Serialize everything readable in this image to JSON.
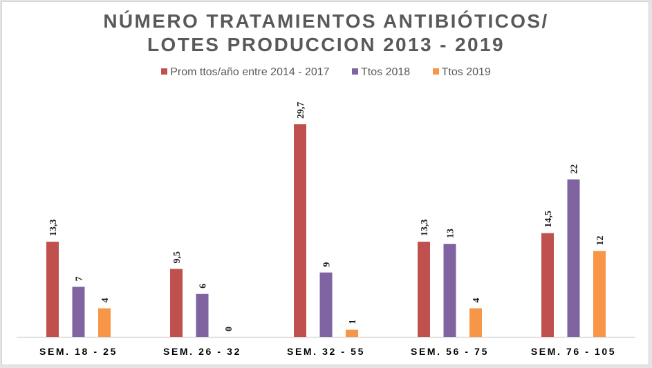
{
  "chart_data": {
    "type": "bar",
    "title_lines": [
      "NÚMERO TRATAMIENTOS ANTIBIÓTICOS/",
      "LOTES PRODUCCION 2013 - 2019"
    ],
    "xlabel": "",
    "ylabel": "",
    "ylim": [
      0,
      31
    ],
    "grid": false,
    "legend_position": "top",
    "categories": [
      "SEM. 18 - 25",
      "SEM. 26 - 32",
      "SEM. 32 - 55",
      "SEM. 56 - 75",
      "SEM. 76 - 105"
    ],
    "series": [
      {
        "name": "Prom ttos/año entre 2014 - 2017",
        "color": "#c0504d",
        "values": [
          13.3,
          9.5,
          29.7,
          13.3,
          14.5
        ],
        "labels": [
          "13,3",
          "9,5",
          "29,7",
          "13,3",
          "14,5"
        ]
      },
      {
        "name": "Ttos 2018",
        "color": "#8064a2",
        "values": [
          7,
          6,
          9,
          13,
          22
        ],
        "labels": [
          "7",
          "6",
          "9",
          "13",
          "22"
        ]
      },
      {
        "name": "Ttos 2019",
        "color": "#f79646",
        "values": [
          4,
          0,
          1,
          4,
          12
        ],
        "labels": [
          "4",
          "0",
          "1",
          "4",
          "12"
        ]
      }
    ]
  }
}
